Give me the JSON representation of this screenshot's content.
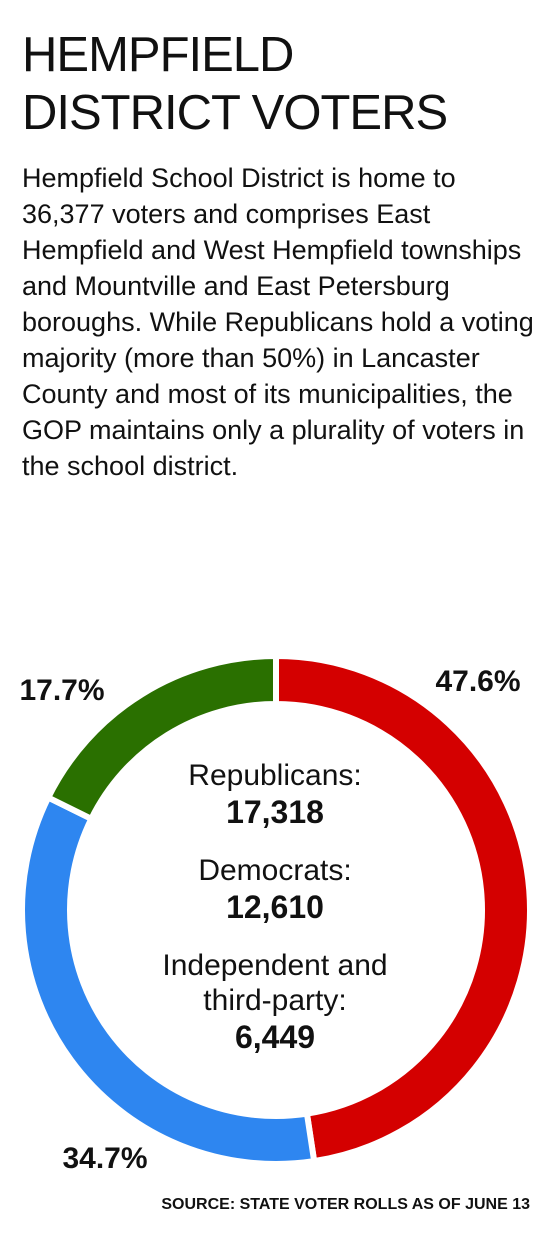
{
  "chart_data": {
    "type": "donut",
    "title": "HEMPFIELD DISTRICT VOTERS",
    "subtitle": "Hempfield School District is home to 36,377 voters and comprises East Hempfield and West Hempfield townships and Mountville and East Petersburg boroughs. While Republicans hold a voting majority (more than 50%) in Lancaster County and most of its municipalities, the GOP maintains only a plurality of voters in the school district.",
    "categories": [
      "Republicans:",
      "Democrats:",
      "Independent and third-party:"
    ],
    "values": [
      47.6,
      34.7,
      17.7
    ],
    "value_labels": [
      "47.6%",
      "34.7%",
      "17.7%"
    ],
    "counts": [
      {
        "value": 17318,
        "label": "17,318"
      },
      {
        "value": 12610,
        "label": "12,610"
      },
      {
        "value": 6449,
        "label": "6,449"
      }
    ],
    "colors": [
      "#d40000",
      "#2e86f0",
      "#2a7000"
    ],
    "source": "SOURCE: STATE VOTER ROLLS AS OF JUNE 13"
  }
}
